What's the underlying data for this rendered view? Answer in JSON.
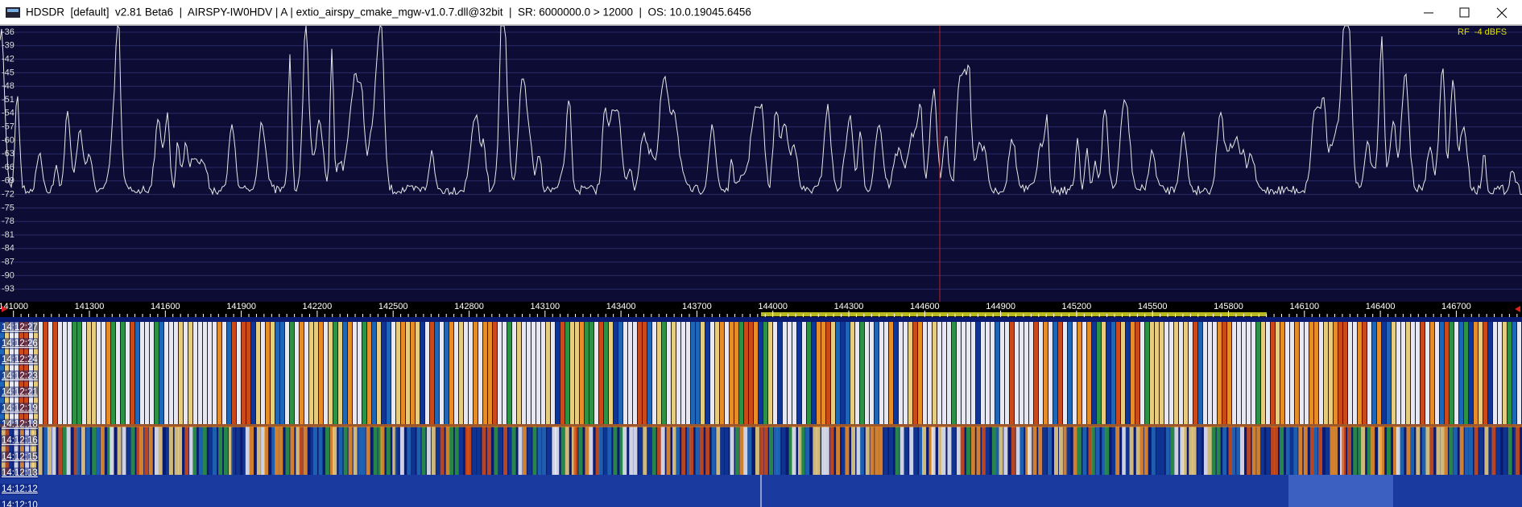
{
  "window": {
    "title": "HDSDR  [default]  v2.81 Beta6  |  AIRSPY-IW0HDV | A | extio_airspy_cmake_mgw-v1.0.7.dll@32bit  |  SR: 6000000.0 > 12000  |  OS: 10.0.19045.6456",
    "rf_level": "RF  -4 dBFS"
  },
  "spectrum": {
    "y_labels": [
      "-36",
      "-39",
      "-42",
      "-45",
      "-48",
      "-51",
      "-54",
      "-57",
      "-60",
      "-63",
      "-66",
      "-69",
      "-72",
      "-75",
      "-78",
      "-81",
      "-84",
      "-87",
      "-90",
      "-93"
    ]
  },
  "frequency_scale": {
    "labels": [
      "141000",
      "141300",
      "141600",
      "141900",
      "142200",
      "142500",
      "142800",
      "143100",
      "143400",
      "143700",
      "144000",
      "144300",
      "144600",
      "144900",
      "145200",
      "145500",
      "145800",
      "146100",
      "146400",
      "146700"
    ]
  },
  "waterfall": {
    "time_labels": [
      "14:12:27",
      "14:12:26",
      "14:12:24",
      "14:12:23",
      "14:12:21",
      "14:12:19",
      "14:12:18",
      "14:12:16",
      "14:12:15",
      "14:12:13",
      "14:12:12",
      "14:12:10"
    ]
  }
}
